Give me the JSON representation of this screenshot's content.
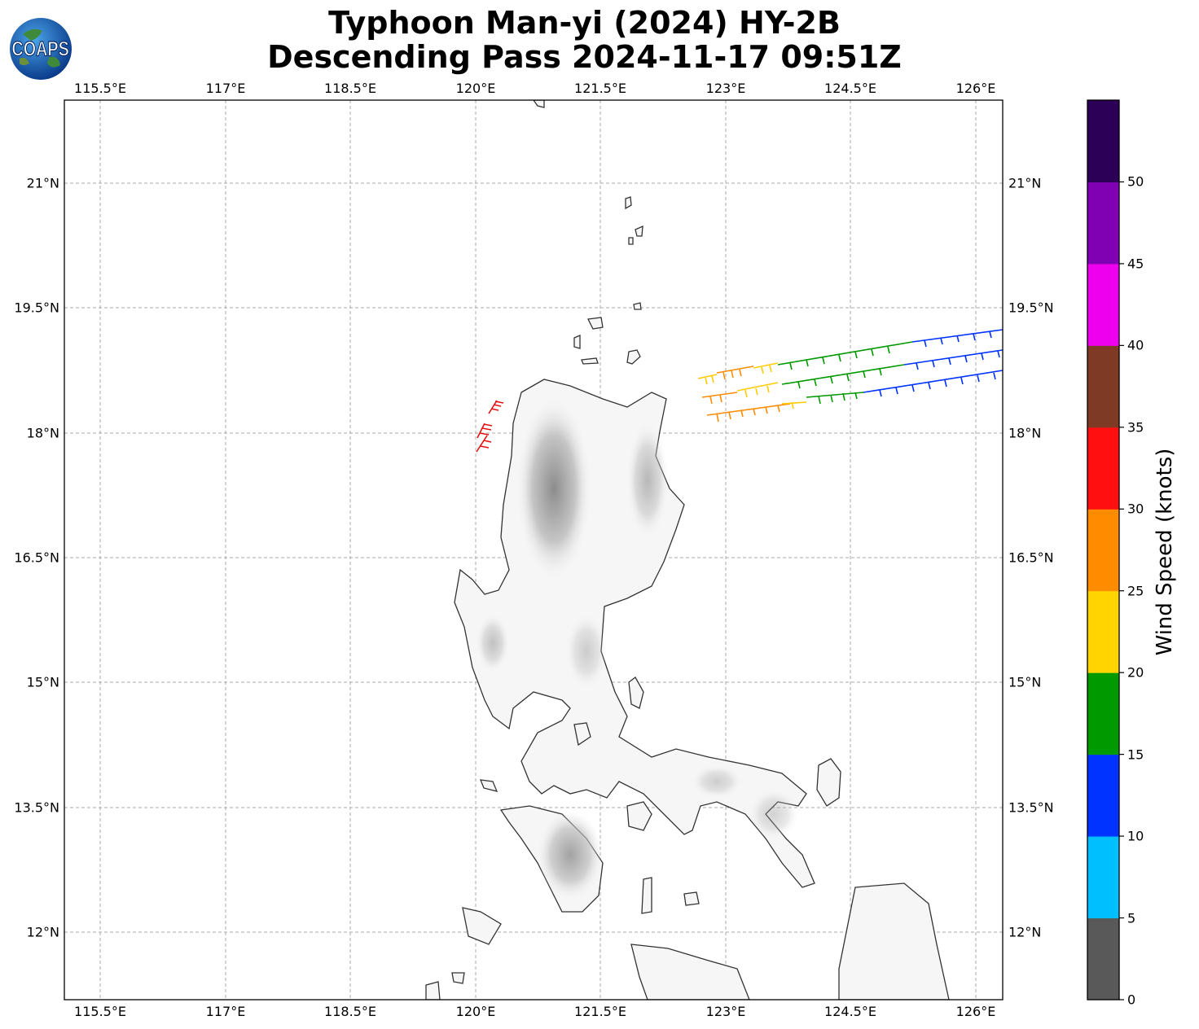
{
  "title": {
    "line1": "Typhoon Man-yi (2024) HY-2B",
    "line2": "Descending Pass 2024-11-17 09:51Z"
  },
  "logo": {
    "text": "COAPS",
    "icon": "globe-icon"
  },
  "map": {
    "lon_labels": [
      "115.5°E",
      "117°E",
      "118.5°E",
      "120°E",
      "121.5°E",
      "123°E",
      "124.5°E",
      "126°E"
    ],
    "lat_labels": [
      "21°N",
      "19.5°N",
      "18°N",
      "16.5°N",
      "15°N",
      "13.5°N",
      "12°N"
    ],
    "lon_range": [
      115.05,
      126.3
    ],
    "lat_range": [
      11.2,
      22.0
    ]
  },
  "colorbar": {
    "label": "Wind Speed (knots)",
    "ticks": [
      "0",
      "5",
      "10",
      "15",
      "20",
      "25",
      "30",
      "35",
      "40",
      "45",
      "50"
    ],
    "colors": [
      "#595959",
      "#00bfff",
      "#0033ff",
      "#009900",
      "#ffd400",
      "#ff8c00",
      "#ff0f0f",
      "#7f3a26",
      "#ee00ee",
      "#8000b3",
      "#2d0058"
    ]
  }
}
